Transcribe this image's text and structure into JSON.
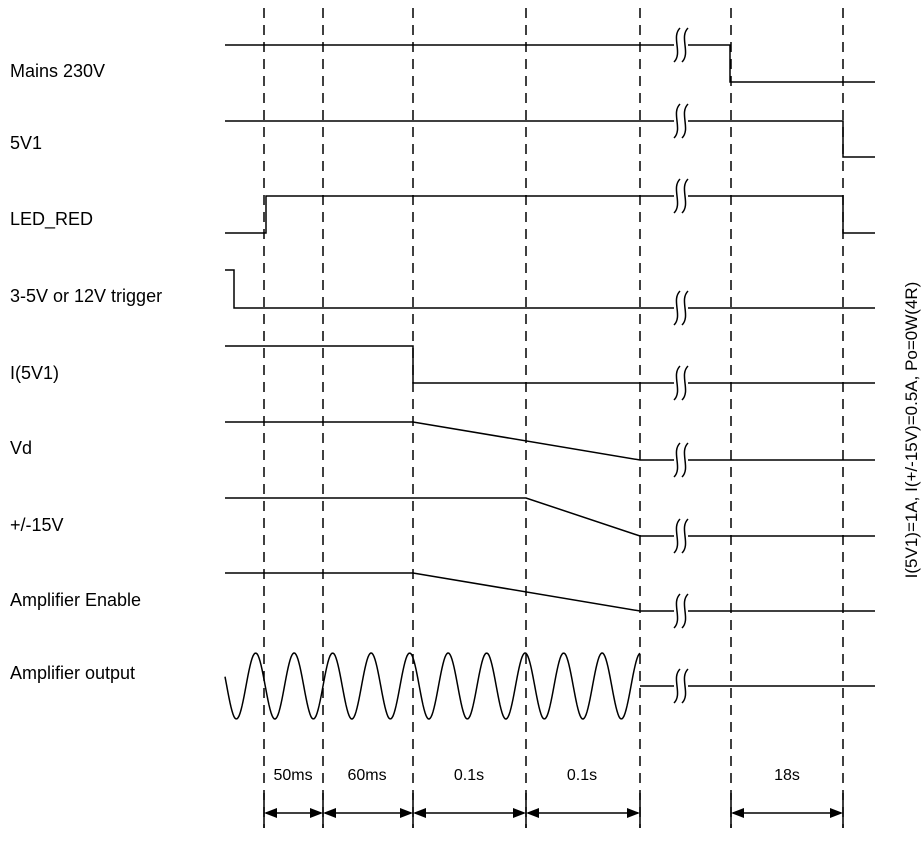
{
  "signals": [
    {
      "id": "mains",
      "label": "Mains 230V"
    },
    {
      "id": "5v1",
      "label": "5V1"
    },
    {
      "id": "led-red",
      "label": "LED_RED"
    },
    {
      "id": "trigger",
      "label": "3-5V or 12V trigger"
    },
    {
      "id": "i5v1",
      "label": "I(5V1)"
    },
    {
      "id": "vd",
      "label": "Vd"
    },
    {
      "id": "pm15v",
      "label": "+/-15V"
    },
    {
      "id": "amp-enable",
      "label": "Amplifier Enable"
    },
    {
      "id": "amp-output",
      "label": "Amplifier output"
    }
  ],
  "intervals": [
    "50ms",
    "60ms",
    "0.1s",
    "0.1s",
    "18s"
  ],
  "side_note": "I(5V1)=1A, I(+/-15V)=0.5A, Po=0W(4R)"
}
